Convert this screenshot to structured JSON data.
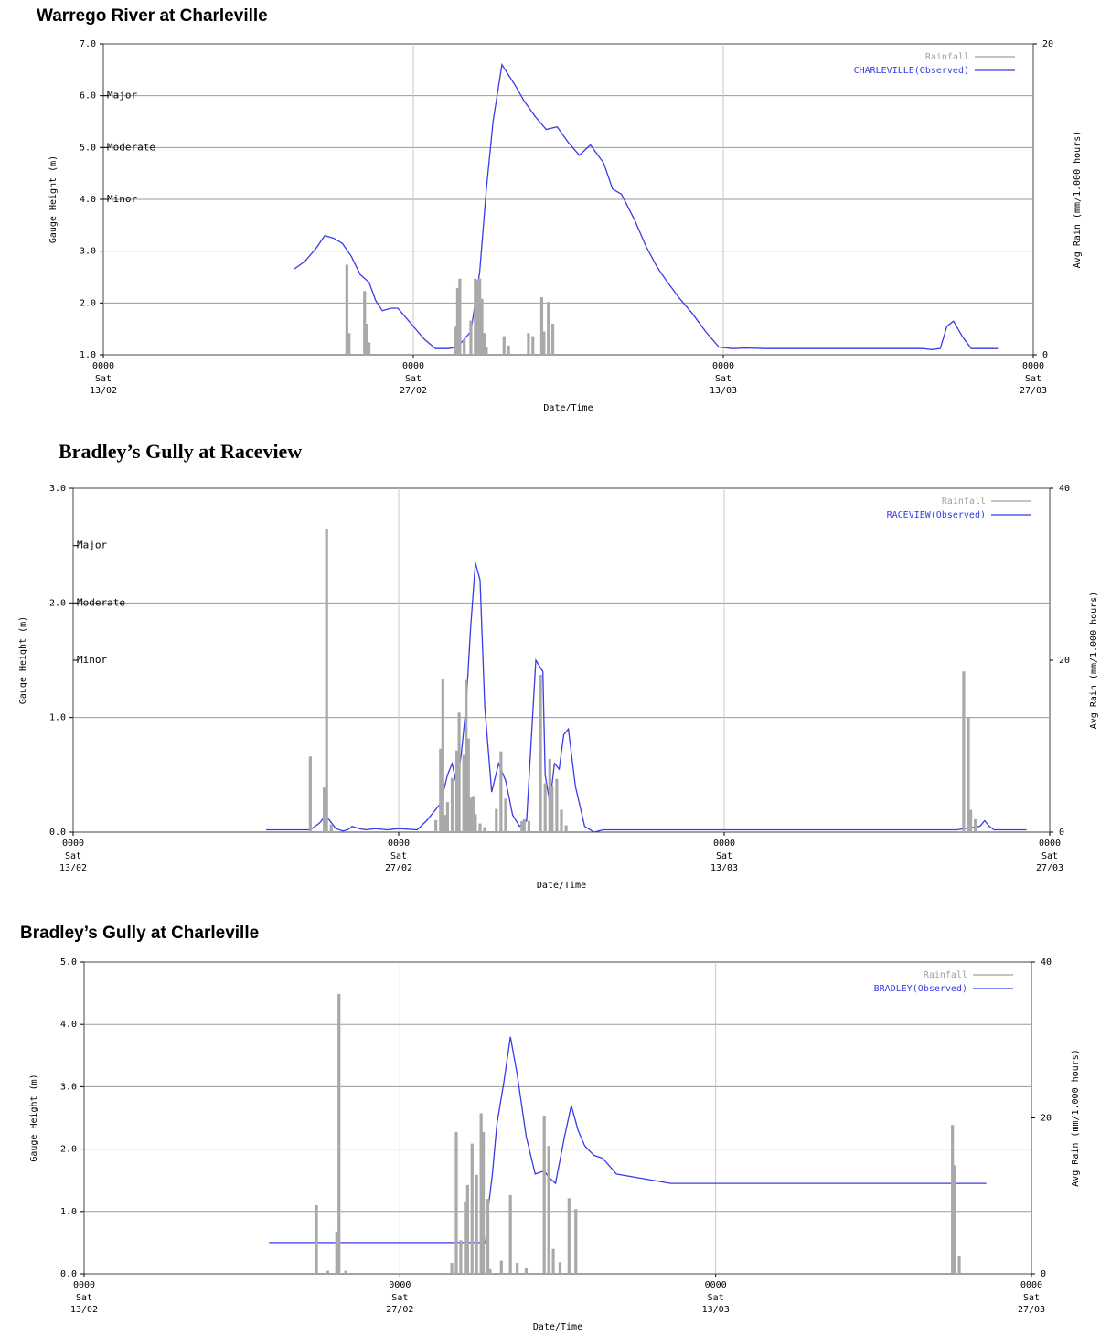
{
  "chart_data": [
    {
      "type": "line",
      "title": "Warrego River at Charleville",
      "xlabel": "Date/Time",
      "ylabel": "Gauge Height (m)",
      "y2label": "Avg Rain (mm/1.000 hours)",
      "x_ticks": [
        {
          "time": "0000",
          "day": "Sat",
          "date": "13/02"
        },
        {
          "time": "0000",
          "day": "Sat",
          "date": "27/02"
        },
        {
          "time": "0000",
          "day": "Sat",
          "date": "13/03"
        },
        {
          "time": "0000",
          "day": "Sat",
          "date": "27/03"
        }
      ],
      "xlim": [
        0,
        42
      ],
      "ylim": [
        1.0,
        7.0
      ],
      "y_ticks": [
        "1.0",
        "2.0",
        "3.0",
        "4.0",
        "5.0",
        "6.0",
        "7.0"
      ],
      "y2lim": [
        0,
        20
      ],
      "y2_ticks": [
        "0",
        "20"
      ],
      "grid": true,
      "legend_position": "top-right",
      "legend": [
        "Rainfall",
        "CHARLEVILLE(Observed)"
      ],
      "flood_levels": [
        {
          "label": "Major",
          "value": 6.0
        },
        {
          "label": "Moderate",
          "value": 5.0
        },
        {
          "label": "Minor",
          "value": 4.0
        }
      ],
      "series": [
        {
          "name": "CHARLEVILLE(Observed)",
          "color": "#3a3ae6",
          "x": [
            8.6,
            9.1,
            9.6,
            10.0,
            10.4,
            10.8,
            11.2,
            11.6,
            12.0,
            12.3,
            12.6,
            13.0,
            13.3,
            13.8,
            14.2,
            14.5,
            15.0,
            15.6,
            16.0,
            16.6,
            17.0,
            17.3,
            17.6,
            18.0,
            18.3,
            18.6,
            19.0,
            19.5,
            20.0,
            20.5,
            21.0,
            21.5,
            22.0,
            22.6,
            23.0,
            23.4,
            24.0,
            24.5,
            25.0,
            25.4,
            26.0,
            26.6,
            27.2,
            27.8,
            28.4,
            29.0,
            30.0,
            32.0,
            34.0,
            36.0,
            37.0,
            37.4,
            37.8,
            38.1,
            38.4,
            38.8,
            39.2,
            39.8,
            40.4
          ],
          "y": [
            2.65,
            2.8,
            3.05,
            3.3,
            3.25,
            3.15,
            2.9,
            2.55,
            2.4,
            2.05,
            1.85,
            1.9,
            1.9,
            1.65,
            1.45,
            1.3,
            1.12,
            1.12,
            1.15,
            1.45,
            2.6,
            4.2,
            5.5,
            6.6,
            6.4,
            6.2,
            5.9,
            5.6,
            5.35,
            5.4,
            5.1,
            4.85,
            5.05,
            4.7,
            4.2,
            4.1,
            3.6,
            3.1,
            2.7,
            2.45,
            2.1,
            1.8,
            1.45,
            1.15,
            1.12,
            1.13,
            1.12,
            1.12,
            1.12,
            1.12,
            1.12,
            1.1,
            1.12,
            1.55,
            1.65,
            1.35,
            1.12,
            1.12,
            1.12
          ]
        },
        {
          "name": "Rainfall",
          "color": "#a9a9a9",
          "axis": "right",
          "x": [
            11.0,
            11.1,
            11.8,
            11.9,
            12.0,
            15.9,
            16.0,
            16.1,
            16.3,
            16.6,
            16.8,
            16.9,
            17.0,
            17.1,
            17.2,
            17.3,
            18.1,
            18.3,
            19.2,
            19.4,
            19.8,
            19.9,
            20.1,
            20.3
          ],
          "y": [
            5.8,
            1.4,
            4.1,
            2.0,
            0.8,
            1.8,
            4.3,
            4.9,
            1.0,
            2.2,
            4.9,
            4.8,
            4.9,
            3.6,
            1.4,
            0.5,
            1.2,
            0.6,
            1.4,
            1.2,
            3.7,
            1.5,
            3.4,
            2.0
          ]
        }
      ]
    },
    {
      "type": "line",
      "title": "Bradley’s Gully at Raceview",
      "xlabel": "Date/Time",
      "ylabel": "Gauge Height (m)",
      "y2label": "Avg Rain (mm/1.000 hours)",
      "x_ticks": [
        {
          "time": "0000",
          "day": "Sat",
          "date": "13/02"
        },
        {
          "time": "0000",
          "day": "Sat",
          "date": "27/02"
        },
        {
          "time": "0000",
          "day": "Sat",
          "date": "13/03"
        },
        {
          "time": "0000",
          "day": "Sat",
          "date": "27/03"
        }
      ],
      "xlim": [
        0,
        42
      ],
      "ylim": [
        0.0,
        3.0
      ],
      "y_ticks": [
        "0.0",
        "1.0",
        "2.0",
        "3.0"
      ],
      "y2lim": [
        0,
        40
      ],
      "y2_ticks": [
        "0",
        "20",
        "40"
      ],
      "grid": true,
      "legend_position": "top-right",
      "legend": [
        "Rainfall",
        "RACEVIEW(Observed)"
      ],
      "flood_levels": [
        {
          "label": "Major",
          "value": 2.5
        },
        {
          "label": "Moderate",
          "value": 2.0
        },
        {
          "label": "Minor",
          "value": 1.5
        }
      ],
      "series": [
        {
          "name": "RACEVIEW(Observed)",
          "color": "#3a3ae6",
          "x": [
            8.3,
            10.2,
            10.6,
            10.8,
            11.0,
            11.3,
            11.6,
            11.8,
            12.0,
            12.3,
            12.6,
            13.0,
            13.5,
            14.0,
            14.8,
            15.2,
            15.8,
            16.1,
            16.3,
            16.5,
            16.7,
            16.9,
            17.1,
            17.3,
            17.5,
            17.7,
            18.0,
            18.3,
            18.6,
            18.9,
            19.2,
            19.5,
            19.9,
            20.2,
            20.3,
            20.5,
            20.7,
            20.9,
            21.1,
            21.3,
            21.6,
            22.0,
            22.4,
            22.8,
            23.2,
            24.0,
            26.0,
            28.0,
            30.0,
            32.0,
            34.0,
            36.0,
            38.0,
            39.0,
            39.2,
            39.4,
            39.6,
            40.0,
            41.0
          ],
          "y": [
            0.02,
            0.02,
            0.08,
            0.13,
            0.11,
            0.03,
            0.01,
            0.02,
            0.05,
            0.03,
            0.02,
            0.03,
            0.02,
            0.03,
            0.02,
            0.1,
            0.25,
            0.5,
            0.6,
            0.4,
            0.7,
            1.1,
            1.8,
            2.35,
            2.2,
            1.1,
            0.35,
            0.6,
            0.45,
            0.15,
            0.05,
            0.1,
            1.5,
            1.4,
            0.5,
            0.25,
            0.6,
            0.55,
            0.85,
            0.9,
            0.4,
            0.05,
            0.0,
            0.02,
            0.02,
            0.02,
            0.02,
            0.02,
            0.02,
            0.02,
            0.02,
            0.02,
            0.02,
            0.05,
            0.1,
            0.05,
            0.02,
            0.02,
            0.02
          ]
        },
        {
          "name": "Rainfall",
          "color": "#a9a9a9",
          "axis": "right",
          "x": [
            10.2,
            10.8,
            10.9,
            11.1,
            15.6,
            15.8,
            15.9,
            16.0,
            16.1,
            16.3,
            16.5,
            16.6,
            16.8,
            16.9,
            17.0,
            17.1,
            17.2,
            17.3,
            17.5,
            17.7,
            18.2,
            18.4,
            18.6,
            19.3,
            19.4,
            19.6,
            20.1,
            20.3,
            20.5,
            20.6,
            20.8,
            21.0,
            21.2,
            38.3,
            38.5,
            38.6,
            38.8
          ],
          "y": [
            8.8,
            5.2,
            35.3,
            0.9,
            1.4,
            9.7,
            17.8,
            2.0,
            3.5,
            6.3,
            9.5,
            13.9,
            9.0,
            17.7,
            10.9,
            4.0,
            4.1,
            2.1,
            1.0,
            0.6,
            2.7,
            9.4,
            3.9,
            1.3,
            1.5,
            1.3,
            18.3,
            5.7,
            8.5,
            5.4,
            6.2,
            2.6,
            0.8,
            18.7,
            13.3,
            2.6,
            1.5
          ]
        }
      ]
    },
    {
      "type": "line",
      "title": "Bradley’s Gully at Charleville",
      "xlabel": "Date/Time",
      "ylabel": "Gauge Height (m)",
      "y2label": "Avg Rain (mm/1.000 hours)",
      "x_ticks": [
        {
          "time": "0000",
          "day": "Sat",
          "date": "13/02"
        },
        {
          "time": "0000",
          "day": "Sat",
          "date": "27/02"
        },
        {
          "time": "0000",
          "day": "Sat",
          "date": "13/03"
        },
        {
          "time": "0000",
          "day": "Sat",
          "date": "27/03"
        }
      ],
      "xlim": [
        0,
        42
      ],
      "ylim": [
        0.0,
        5.0
      ],
      "y_ticks": [
        "0.0",
        "1.0",
        "2.0",
        "3.0",
        "4.0",
        "5.0"
      ],
      "y2lim": [
        0,
        40
      ],
      "y2_ticks": [
        "0",
        "20",
        "40"
      ],
      "grid": true,
      "legend_position": "top-right",
      "legend": [
        "Rainfall",
        "BRADLEY(Observed)"
      ],
      "flood_levels": [],
      "series": [
        {
          "name": "BRADLEY(Observed)",
          "color": "#3a3ae6",
          "x": [
            8.2,
            17.8,
            17.9,
            18.1,
            18.3,
            18.6,
            18.9,
            19.2,
            19.6,
            20.0,
            20.4,
            20.6,
            20.9,
            21.3,
            21.6,
            21.9,
            22.2,
            22.6,
            23.0,
            23.6,
            26.0,
            30.0,
            34.0,
            38.0,
            40.0
          ],
          "y": [
            0.5,
            0.5,
            1.0,
            1.6,
            2.4,
            3.05,
            3.8,
            3.2,
            2.2,
            1.6,
            1.65,
            1.55,
            1.45,
            2.2,
            2.7,
            2.3,
            2.05,
            1.9,
            1.85,
            1.6,
            1.45,
            1.45,
            1.45,
            1.45,
            1.45
          ]
        },
        {
          "name": "Rainfall",
          "color": "#a9a9a9",
          "axis": "right",
          "x": [
            10.3,
            10.8,
            11.2,
            11.3,
            11.6,
            16.3,
            16.5,
            16.7,
            16.9,
            17.0,
            17.2,
            17.4,
            17.6,
            17.7,
            17.9,
            18.0,
            18.5,
            18.9,
            19.2,
            19.6,
            20.4,
            20.6,
            20.8,
            21.1,
            21.5,
            21.8,
            38.5,
            38.6,
            38.8
          ],
          "y": [
            8.8,
            0.4,
            5.4,
            35.9,
            0.4,
            1.4,
            18.2,
            4.3,
            9.3,
            11.4,
            16.7,
            12.7,
            20.6,
            18.2,
            9.6,
            0.6,
            1.7,
            10.1,
            1.4,
            0.7,
            20.3,
            16.4,
            3.2,
            1.5,
            9.7,
            8.3,
            19.1,
            13.9,
            2.3
          ]
        }
      ]
    }
  ]
}
